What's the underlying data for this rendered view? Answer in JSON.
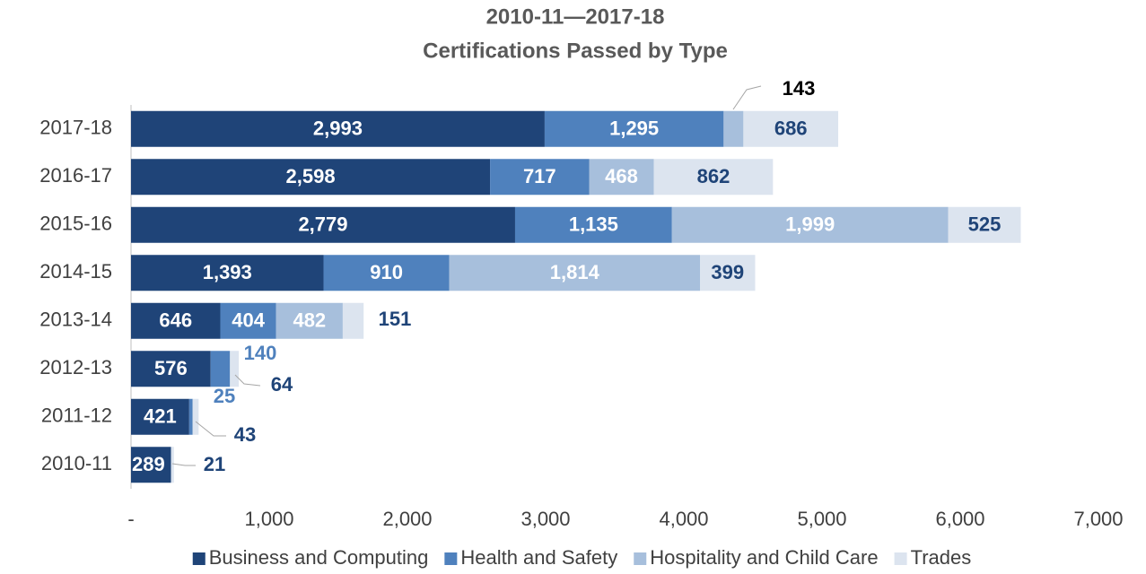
{
  "chart_data": {
    "type": "stacked-bar-horizontal",
    "title": "2010-11—2017-18",
    "subtitle": "Certifications Passed by Type",
    "categories": [
      "2017-18",
      "2016-17",
      "2015-16",
      "2014-15",
      "2013-14",
      "2012-13",
      "2011-12",
      "2010-11"
    ],
    "series": [
      {
        "name": "Business and Computing",
        "color": "#1f4478",
        "values": [
          2993,
          2598,
          2779,
          1393,
          646,
          576,
          421,
          289
        ],
        "value_labels": [
          "2,993",
          "2,598",
          "2,779",
          "1,393",
          "646",
          "576",
          "421",
          "289"
        ]
      },
      {
        "name": "Health and Safety",
        "color": "#4f81bd",
        "values": [
          1295,
          717,
          1135,
          910,
          404,
          140,
          25,
          null
        ],
        "value_labels": [
          "1,295",
          "717",
          "1,135",
          "910",
          "404",
          "140",
          "25",
          null
        ]
      },
      {
        "name": "Hospitality and Child Care",
        "color": "#a7bfdc",
        "values": [
          143,
          468,
          1999,
          1814,
          482,
          null,
          null,
          null
        ],
        "value_labels": [
          "143",
          "468",
          "1,999",
          "1,814",
          "482",
          null,
          null,
          null
        ]
      },
      {
        "name": "Trades",
        "color": "#dce4ef",
        "values": [
          686,
          862,
          525,
          399,
          151,
          64,
          43,
          21
        ],
        "value_labels": [
          "686",
          "862",
          "525",
          "399",
          "151",
          "64",
          "43",
          "21"
        ]
      }
    ],
    "xlim": [
      0,
      7000
    ],
    "xticks": [
      {
        "value": 0,
        "label": "-"
      },
      {
        "value": 1000,
        "label": "1,000"
      },
      {
        "value": 2000,
        "label": "2,000"
      },
      {
        "value": 3000,
        "label": "3,000"
      },
      {
        "value": 4000,
        "label": "4,000"
      },
      {
        "value": 5000,
        "label": "5,000"
      },
      {
        "value": 6000,
        "label": "6,000"
      },
      {
        "value": 7000,
        "label": "7,000"
      }
    ],
    "legend": "bottom"
  }
}
